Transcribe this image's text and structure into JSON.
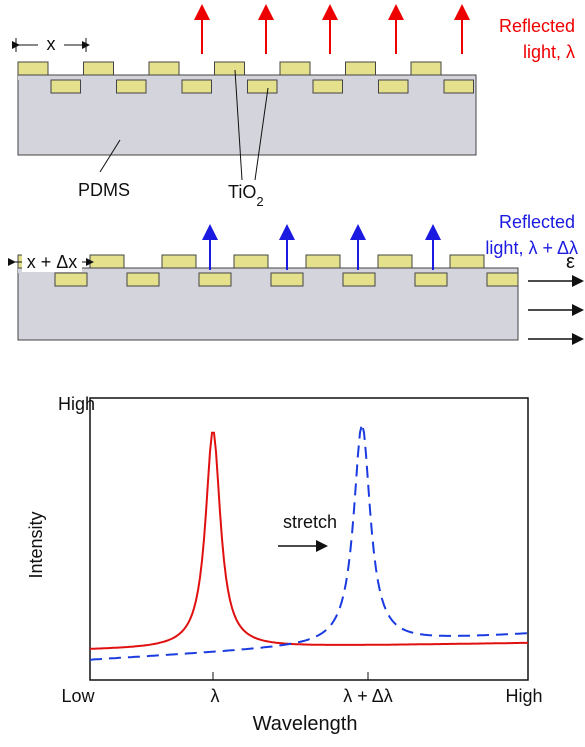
{
  "top_diagram": {
    "period_label": "x",
    "reflected": [
      "Reflected",
      "light, λ"
    ],
    "substrate": "PDMS",
    "coating": {
      "base": "TiO",
      "subscript": "2"
    }
  },
  "bottom_diagram": {
    "period_label": "x + Δx",
    "reflected": [
      "Reflected",
      "light, λ + Δλ"
    ],
    "strain": "ε"
  },
  "spectrum": {
    "y_axis": {
      "label": "Intensity",
      "top": "High"
    },
    "x_axis": {
      "label": "Wavelength",
      "left": "Low",
      "right": "High",
      "ticks": [
        "λ",
        "λ + Δλ"
      ]
    },
    "annotation": "stretch"
  }
}
